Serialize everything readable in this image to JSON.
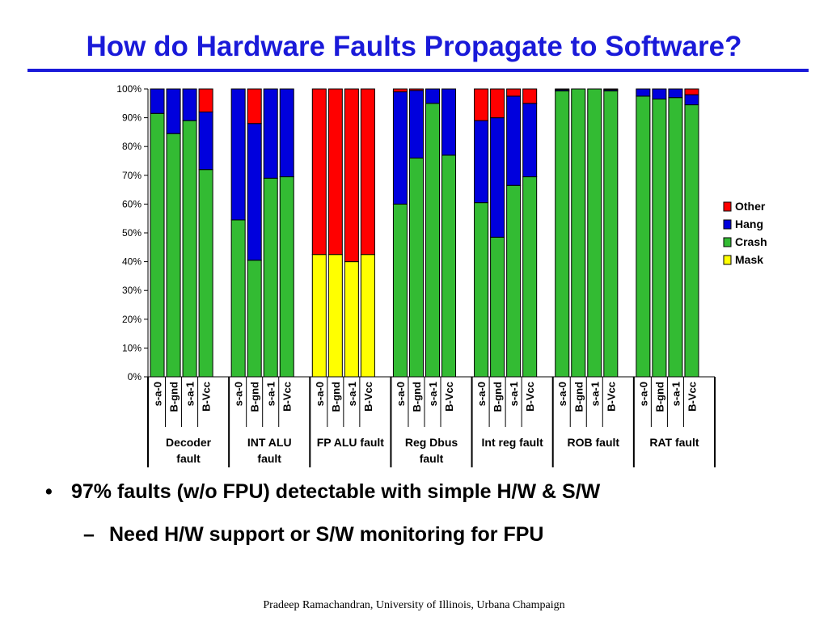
{
  "slide": {
    "title": "How do Hardware Faults Propagate to Software?",
    "bullets": [
      "97% faults (w/o FPU) detectable with simple H/W & S/W"
    ],
    "sub_bullets": [
      "Need H/W support or S/W monitoring for FPU"
    ],
    "bullet_symbol": "•",
    "sub_bullet_symbol": "–",
    "footer": "Pradeep Ramachandran, University of Illinois, Urbana Champaign"
  },
  "chart_data": {
    "type": "bar",
    "stacked": true,
    "title": "",
    "xlabel": "",
    "ylabel": "",
    "ylim": [
      0,
      100
    ],
    "yticks": [
      "0%",
      "10%",
      "20%",
      "30%",
      "40%",
      "50%",
      "60%",
      "70%",
      "80%",
      "90%",
      "100%"
    ],
    "legend_position": "right",
    "subcategories": [
      "s-a-0",
      "B-gnd",
      "s-a-1",
      "B-Vcc"
    ],
    "groups": [
      {
        "label": [
          "Decoder",
          "fault"
        ]
      },
      {
        "label": [
          "INT ALU",
          "fault"
        ]
      },
      {
        "label": [
          "FP ALU fault"
        ]
      },
      {
        "label": [
          "Reg Dbus",
          "fault"
        ]
      },
      {
        "label": [
          "Int reg fault"
        ]
      },
      {
        "label": [
          "ROB fault"
        ]
      },
      {
        "label": [
          "RAT fault"
        ]
      }
    ],
    "series": [
      {
        "name": "Mask",
        "color": "#ffff00",
        "values": [
          0,
          0,
          0,
          0,
          0,
          0,
          0,
          0,
          42.5,
          42.5,
          40,
          42.5,
          0,
          0,
          0,
          0,
          0,
          0,
          0,
          0,
          0,
          0,
          0,
          0,
          0,
          0,
          0,
          0
        ]
      },
      {
        "name": "Crash",
        "color": "#33bb33",
        "values": [
          91.5,
          84.5,
          89,
          72,
          54.5,
          40.5,
          69,
          69.5,
          0,
          0,
          0,
          0,
          60,
          76,
          95,
          77,
          60.5,
          48.5,
          66.5,
          69.5,
          99.3,
          100,
          100,
          99.3,
          97.5,
          96.5,
          97,
          94.5
        ]
      },
      {
        "name": "Hang",
        "color": "#0000dd",
        "values": [
          8.5,
          15.5,
          11,
          20,
          45.5,
          47.5,
          31,
          30.5,
          0,
          0,
          0,
          0,
          39,
          23.5,
          5,
          23,
          28.5,
          41.5,
          31,
          25.5,
          0.4,
          0,
          0,
          0.4,
          2.5,
          3.5,
          3,
          3.5
        ]
      },
      {
        "name": "Other",
        "color": "#ff0000",
        "values": [
          0,
          0,
          0,
          8,
          0,
          12,
          0,
          0,
          57.5,
          57.5,
          60,
          57.5,
          1,
          0.5,
          0,
          0,
          11,
          10,
          2.5,
          5,
          0.3,
          0,
          0,
          0.3,
          0,
          0,
          0,
          2
        ]
      }
    ]
  }
}
